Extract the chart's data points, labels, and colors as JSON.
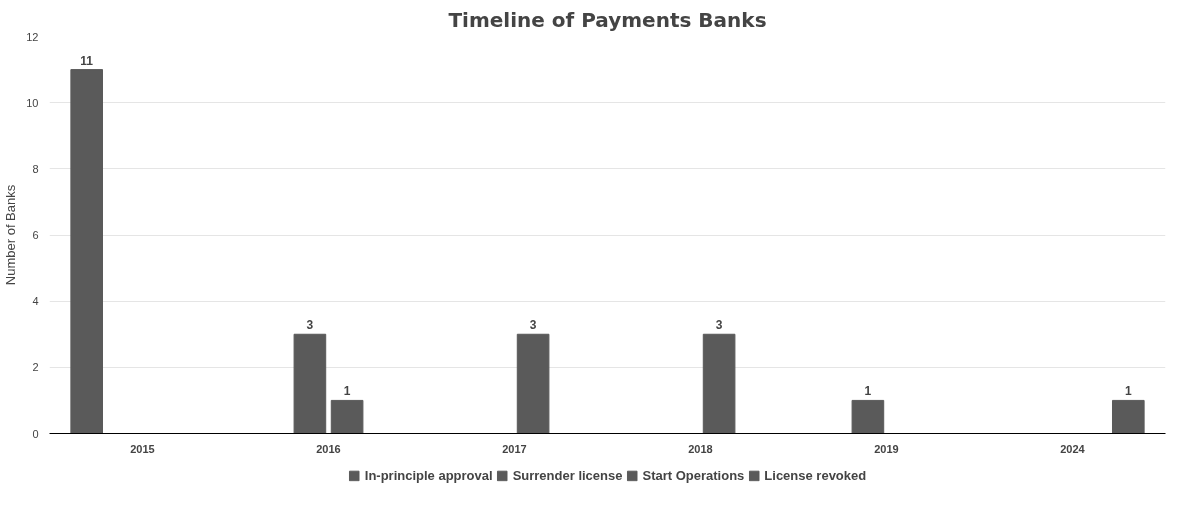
{
  "chart_data": {
    "type": "bar",
    "title": "Timeline of Payments Banks",
    "ylabel": "Number of Banks",
    "categories": [
      "2015",
      "2016",
      "2017",
      "2018",
      "2019",
      "2024"
    ],
    "series": [
      {
        "name": "In-principle approval",
        "color": "#5a5a5a",
        "values": [
          11,
          null,
          null,
          null,
          null,
          null
        ]
      },
      {
        "name": "Surrender license",
        "color": "#5a5a5a",
        "values": [
          null,
          3,
          null,
          null,
          1,
          null
        ]
      },
      {
        "name": "Start Operations",
        "color": "#5a5a5a",
        "values": [
          null,
          1,
          3,
          3,
          null,
          null
        ]
      },
      {
        "name": "License revoked",
        "color": "#5a5a5a",
        "values": [
          null,
          null,
          null,
          null,
          null,
          1
        ]
      }
    ],
    "ylim": [
      0,
      12
    ],
    "yticks": [
      0,
      2,
      4,
      6,
      8,
      10,
      12
    ],
    "grid": "y",
    "legend": "bottom",
    "data_labels": true
  }
}
